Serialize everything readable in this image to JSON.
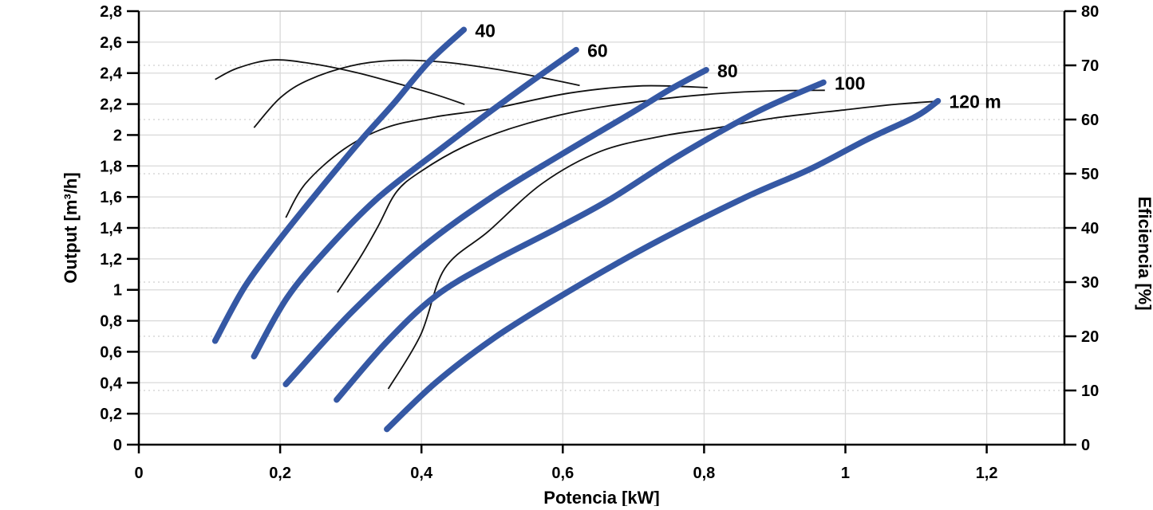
{
  "page": {
    "background": "#ffffff"
  },
  "chart_data": {
    "type": "line",
    "title": "",
    "xlabel": "Potencia [kW]",
    "ylabel_left": "Output [m³/h]",
    "ylabel_right": "Eficiencia [%]",
    "decimal_separator": ",",
    "x_range": [
      0,
      1.31
    ],
    "y_left_range": [
      0,
      2.8
    ],
    "y_right_range": [
      0,
      80
    ],
    "grid": {
      "vertical_solid": true,
      "horizontal_solid": true,
      "dotted_at_right_ticks": true,
      "legend": "none"
    },
    "x_ticks": {
      "values": [
        0,
        0.2,
        0.4,
        0.6,
        0.8,
        1,
        1.2
      ],
      "labels": [
        "0",
        "0,2",
        "0,4",
        "0,6",
        "0,8",
        "1",
        "1,2"
      ]
    },
    "y_left_ticks": {
      "values": [
        0,
        0.2,
        0.4,
        0.6,
        0.8,
        1,
        1.2,
        1.4,
        1.6,
        1.8,
        2,
        2.2,
        2.4,
        2.6,
        2.8
      ],
      "labels": [
        "0",
        "0,2",
        "0,4",
        "0,6",
        "0,8",
        "1",
        "1,2",
        "1,4",
        "1,6",
        "1,8",
        "2",
        "2,2",
        "2,4",
        "2,6",
        "2,8"
      ]
    },
    "y_right_ticks": {
      "values": [
        0,
        10,
        20,
        30,
        40,
        50,
        60,
        70,
        80
      ],
      "labels": [
        "0",
        "10",
        "20",
        "30",
        "40",
        "50",
        "60",
        "70",
        "80"
      ]
    },
    "dotted_right_values": [
      10,
      20,
      30,
      40,
      50,
      60,
      70
    ],
    "colors": {
      "head_curve": "#3558A4",
      "efficiency_curve": "#111111",
      "grid_solid": "#d9d9d9",
      "grid_dotted": "#cfcfcf",
      "axis": "#000000",
      "top_border": "#b2b2b2"
    },
    "head_curves": {
      "x_unit": "kW",
      "y_unit": "m³/h",
      "axis": "left",
      "series": [
        {
          "name": "40 m",
          "label": "40",
          "points": [
            [
              0.108,
              0.67
            ],
            [
              0.15,
              1.02
            ],
            [
              0.2,
              1.33
            ],
            [
              0.26,
              1.67
            ],
            [
              0.315,
              1.97
            ],
            [
              0.36,
              2.2
            ],
            [
              0.41,
              2.47
            ],
            [
              0.46,
              2.68
            ]
          ]
        },
        {
          "name": "60 m",
          "label": "60",
          "points": [
            [
              0.163,
              0.57
            ],
            [
              0.21,
              0.95
            ],
            [
              0.27,
              1.28
            ],
            [
              0.34,
              1.6
            ],
            [
              0.43,
              1.92
            ],
            [
              0.5,
              2.16
            ],
            [
              0.56,
              2.36
            ],
            [
              0.619,
              2.55
            ]
          ]
        },
        {
          "name": "80 m",
          "label": "80",
          "points": [
            [
              0.208,
              0.39
            ],
            [
              0.3,
              0.85
            ],
            [
              0.4,
              1.27
            ],
            [
              0.5,
              1.6
            ],
            [
              0.6,
              1.88
            ],
            [
              0.7,
              2.15
            ],
            [
              0.75,
              2.29
            ],
            [
              0.803,
              2.42
            ]
          ]
        },
        {
          "name": "100 m",
          "label": "100",
          "points": [
            [
              0.28,
              0.29
            ],
            [
              0.35,
              0.66
            ],
            [
              0.42,
              0.96
            ],
            [
              0.5,
              1.18
            ],
            [
              0.593,
              1.4
            ],
            [
              0.669,
              1.59
            ],
            [
              0.762,
              1.86
            ],
            [
              0.875,
              2.15
            ],
            [
              0.969,
              2.34
            ]
          ]
        },
        {
          "name": "120 m",
          "label": "120 m",
          "points": [
            [
              0.351,
              0.1
            ],
            [
              0.42,
              0.4
            ],
            [
              0.5,
              0.68
            ],
            [
              0.59,
              0.94
            ],
            [
              0.72,
              1.28
            ],
            [
              0.855,
              1.59
            ],
            [
              0.95,
              1.78
            ],
            [
              1.03,
              1.97
            ],
            [
              1.1,
              2.12
            ],
            [
              1.131,
              2.22
            ]
          ]
        }
      ]
    },
    "efficiency_curves": {
      "x_unit": "kW",
      "y_unit": "%",
      "axis": "right",
      "series": [
        {
          "name": "eficiencia 40 m",
          "points": [
            [
              0.108,
              67.4
            ],
            [
              0.14,
              69.5
            ],
            [
              0.19,
              71.0
            ],
            [
              0.25,
              70.2
            ],
            [
              0.31,
              68.6
            ],
            [
              0.37,
              66.5
            ],
            [
              0.42,
              64.6
            ],
            [
              0.461,
              62.8
            ]
          ]
        },
        {
          "name": "eficiencia 60 m",
          "points": [
            [
              0.163,
              58.5
            ],
            [
              0.2,
              64.0
            ],
            [
              0.24,
              67.3
            ],
            [
              0.3,
              69.9
            ],
            [
              0.36,
              70.9
            ],
            [
              0.43,
              70.6
            ],
            [
              0.5,
              69.4
            ],
            [
              0.56,
              68.0
            ],
            [
              0.624,
              66.3
            ]
          ]
        },
        {
          "name": "eficiencia 80 m",
          "points": [
            [
              0.208,
              41.9
            ],
            [
              0.236,
              48.2
            ],
            [
              0.29,
              54.5
            ],
            [
              0.35,
              58.5
            ],
            [
              0.42,
              60.5
            ],
            [
              0.5,
              62.0
            ],
            [
              0.61,
              64.9
            ],
            [
              0.71,
              66.2
            ],
            [
              0.805,
              65.9
            ]
          ]
        },
        {
          "name": "eficiencia 100 m",
          "points": [
            [
              0.281,
              28.1
            ],
            [
              0.314,
              34.7
            ],
            [
              0.339,
              40.4
            ],
            [
              0.365,
              46.7
            ],
            [
              0.4,
              50.5
            ],
            [
              0.46,
              55.0
            ],
            [
              0.53,
              58.5
            ],
            [
              0.62,
              61.5
            ],
            [
              0.72,
              63.5
            ],
            [
              0.82,
              64.8
            ],
            [
              0.9,
              65.3
            ],
            [
              0.971,
              65.4
            ]
          ]
        },
        {
          "name": "eficiencia 120 m",
          "points": [
            [
              0.353,
              10.3
            ],
            [
              0.399,
              20.3
            ],
            [
              0.433,
              32.5
            ],
            [
              0.495,
              39.4
            ],
            [
              0.571,
              48.2
            ],
            [
              0.653,
              54.1
            ],
            [
              0.743,
              57.0
            ],
            [
              0.82,
              58.5
            ],
            [
              0.9,
              60.3
            ],
            [
              1.0,
              61.8
            ],
            [
              1.07,
              62.8
            ],
            [
              1.133,
              63.4
            ]
          ]
        }
      ]
    }
  }
}
